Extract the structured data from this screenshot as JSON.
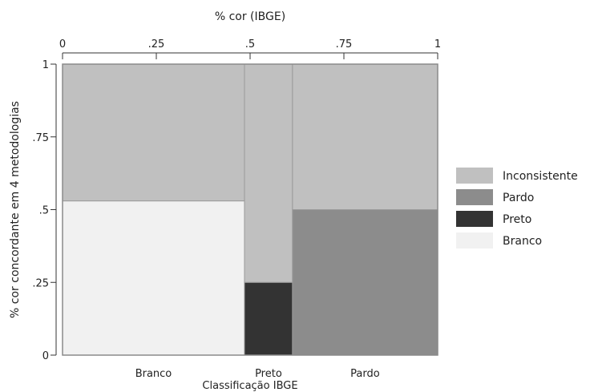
{
  "chart_data": {
    "type": "mosaic",
    "title": "",
    "top_axis": {
      "label": "% cor (IBGE)",
      "range": [
        0,
        1
      ],
      "ticks": [
        {
          "value": 0,
          "label": "0"
        },
        {
          "value": 0.25,
          "label": ".25"
        },
        {
          "value": 0.5,
          "label": ".5"
        },
        {
          "value": 0.75,
          "label": ".75"
        },
        {
          "value": 1,
          "label": "1"
        }
      ]
    },
    "y_axis": {
      "label": "% cor concordante em 4 metodologias",
      "range": [
        0,
        1
      ],
      "ticks": [
        {
          "value": 0,
          "label": "0"
        },
        {
          "value": 0.25,
          "label": ".25"
        },
        {
          "value": 0.5,
          "label": ".5"
        },
        {
          "value": 0.75,
          "label": ".75"
        },
        {
          "value": 1,
          "label": "1"
        }
      ]
    },
    "x_axis": {
      "label": "Classificação IBGE"
    },
    "categories": [
      {
        "name": "Branco",
        "start": 0,
        "end": 0.485
      },
      {
        "name": "Preto",
        "start": 0.485,
        "end": 0.613
      },
      {
        "name": "Pardo",
        "start": 0.613,
        "end": 1
      }
    ],
    "series": [
      {
        "name": "Branco",
        "color": "#f1f1f1",
        "values": [
          0.53,
          0,
          0
        ]
      },
      {
        "name": "Preto",
        "color": "#333333",
        "values": [
          0,
          0.25,
          0
        ]
      },
      {
        "name": "Pardo",
        "color": "#8c8c8c",
        "values": [
          0,
          0,
          0.5
        ]
      },
      {
        "name": "Inconsistente",
        "color": "#c0c0c0",
        "values": [
          0.47,
          0.75,
          0.5
        ]
      }
    ],
    "legend": {
      "position": "right",
      "items": [
        {
          "label": "Inconsistente",
          "color": "#c0c0c0"
        },
        {
          "label": "Pardo",
          "color": "#8c8c8c"
        },
        {
          "label": "Preto",
          "color": "#333333"
        },
        {
          "label": "Branco",
          "color": "#f1f1f1"
        }
      ]
    },
    "grid": false
  }
}
